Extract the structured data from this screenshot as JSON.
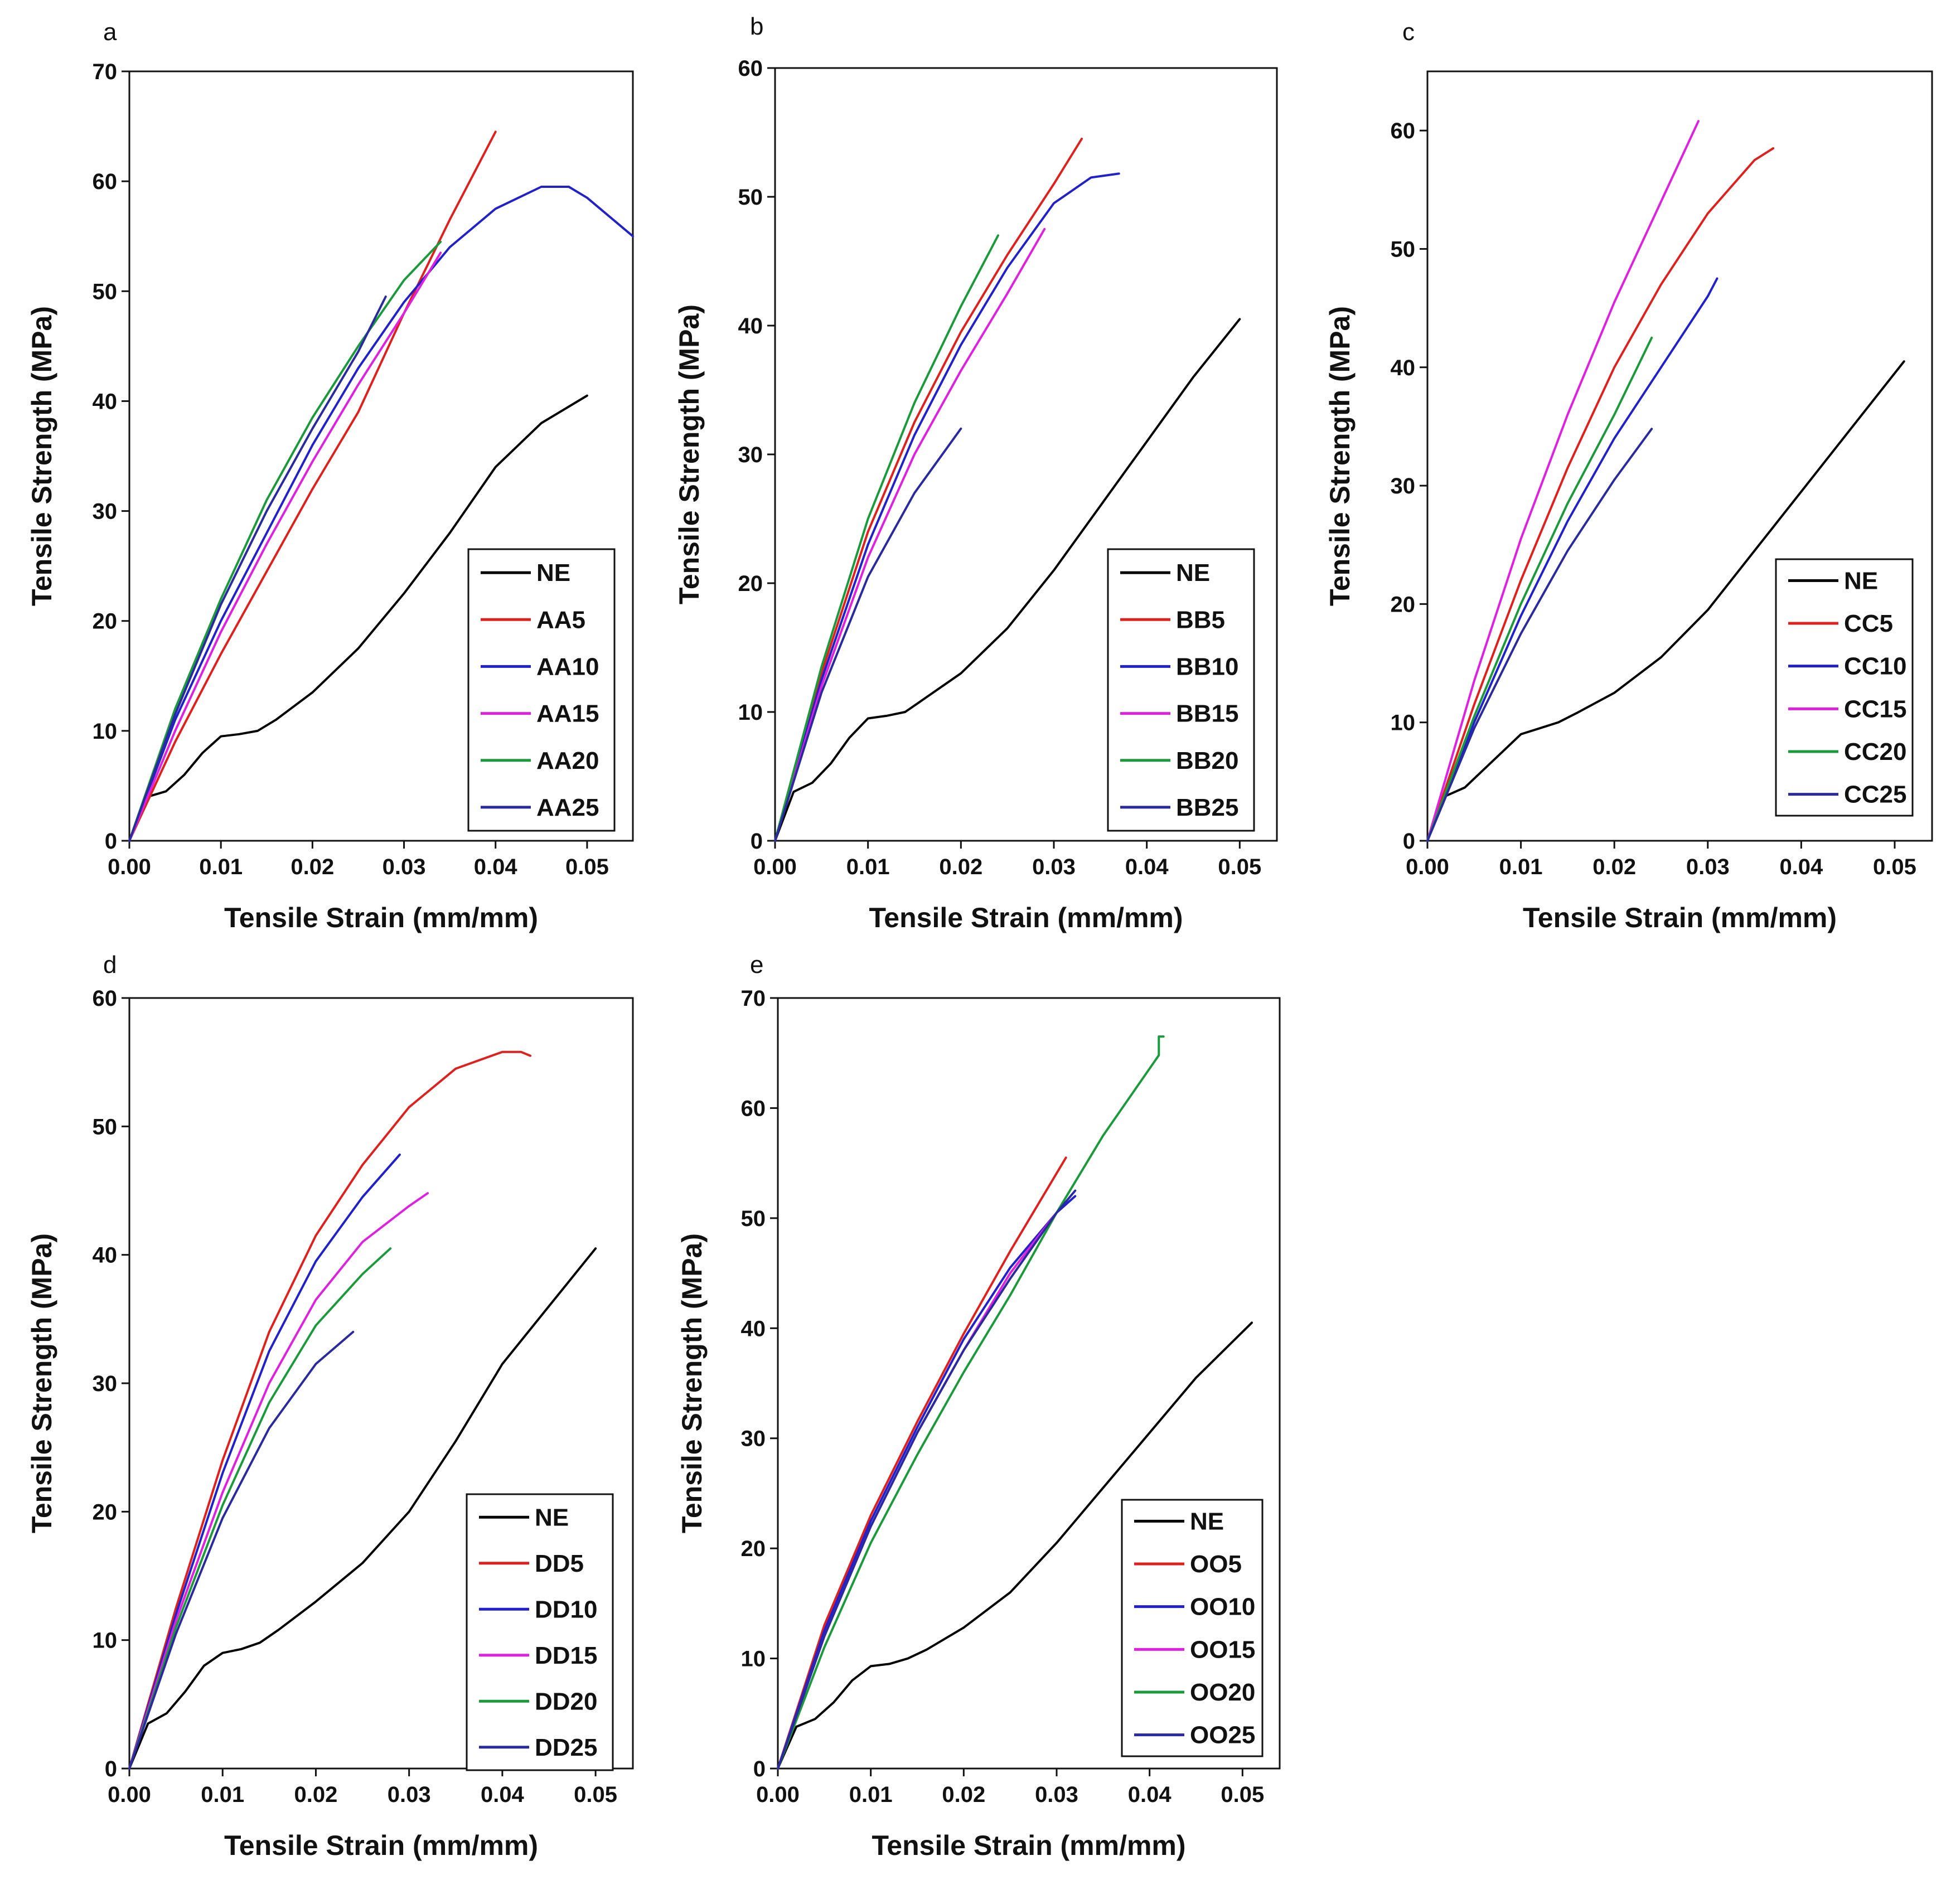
{
  "chart_data": [
    {
      "panel": "a",
      "type": "line",
      "xlabel": "Tensile  Strain (mm/mm)",
      "ylabel": "Tensile Strength (MPa)",
      "xlim": [
        0,
        0.055
      ],
      "ylim": [
        0,
        70
      ],
      "xticks": [
        0.0,
        0.01,
        0.02,
        0.03,
        0.04,
        0.05
      ],
      "yticks": [
        0,
        10,
        20,
        30,
        40,
        50,
        60,
        70
      ],
      "xtick_labels": [
        "0.00",
        "0.01",
        "0.02",
        "0.03",
        "0.04",
        "0.05"
      ],
      "ytick_labels": [
        "0",
        "10",
        "20",
        "30",
        "40",
        "50",
        "60",
        "70"
      ],
      "legend": "bottom-right",
      "series": [
        {
          "name": "NE",
          "color": "#000000",
          "x": [
            0,
            0.002,
            0.004,
            0.006,
            0.008,
            0.01,
            0.012,
            0.014,
            0.016,
            0.02,
            0.025,
            0.03,
            0.035,
            0.04,
            0.045,
            0.05
          ],
          "y": [
            0,
            4,
            4.5,
            6,
            8,
            9.5,
            9.7,
            10,
            11,
            13.5,
            17.5,
            22.5,
            28,
            34,
            38,
            40.5
          ]
        },
        {
          "name": "AA5",
          "color": "#e0201c",
          "x": [
            0,
            0.005,
            0.01,
            0.015,
            0.02,
            0.025,
            0.03,
            0.035,
            0.04
          ],
          "y": [
            0,
            9,
            17,
            24.5,
            32,
            39,
            48,
            56.5,
            64.5
          ]
        },
        {
          "name": "AA10",
          "color": "#2020cc",
          "x": [
            0,
            0.005,
            0.01,
            0.015,
            0.02,
            0.025,
            0.03,
            0.035,
            0.04,
            0.045,
            0.048,
            0.05,
            0.055
          ],
          "y": [
            0,
            11,
            20,
            28,
            36,
            43,
            49,
            54,
            57.5,
            59.5,
            59.5,
            58.5,
            55
          ]
        },
        {
          "name": "AA15",
          "color": "#e020e0",
          "x": [
            0,
            0.005,
            0.01,
            0.015,
            0.02,
            0.025,
            0.03,
            0.034
          ],
          "y": [
            0,
            10,
            19,
            27,
            34.5,
            41.5,
            48,
            53.5
          ]
        },
        {
          "name": "AA20",
          "color": "#1a9a3a",
          "x": [
            0,
            0.005,
            0.01,
            0.015,
            0.02,
            0.025,
            0.03,
            0.034
          ],
          "y": [
            0,
            12,
            22,
            31,
            38.5,
            45,
            51,
            54.5
          ]
        },
        {
          "name": "AA25",
          "color": "#2a2aa0",
          "x": [
            0,
            0.005,
            0.01,
            0.015,
            0.02,
            0.025,
            0.028
          ],
          "y": [
            0,
            11.5,
            21.5,
            30,
            37.5,
            44.5,
            49.5
          ]
        }
      ]
    },
    {
      "panel": "b",
      "type": "line",
      "xlabel": "Tensile Strain (mm/mm)",
      "ylabel": "Tensile Strength (MPa)",
      "xlim": [
        0,
        0.054
      ],
      "ylim": [
        0,
        60
      ],
      "xticks": [
        0.0,
        0.01,
        0.02,
        0.03,
        0.04,
        0.05
      ],
      "yticks": [
        0,
        10,
        20,
        30,
        40,
        50,
        60
      ],
      "xtick_labels": [
        "0.00",
        "0.01",
        "0.02",
        "0.03",
        "0.04",
        "0.05"
      ],
      "ytick_labels": [
        "0",
        "10",
        "20",
        "30",
        "40",
        "50",
        "60"
      ],
      "legend": "bottom-right",
      "series": [
        {
          "name": "NE",
          "color": "#000000",
          "x": [
            0,
            0.002,
            0.004,
            0.006,
            0.008,
            0.01,
            0.012,
            0.014,
            0.016,
            0.02,
            0.025,
            0.03,
            0.035,
            0.04,
            0.045,
            0.05
          ],
          "y": [
            0,
            3.8,
            4.5,
            6,
            8,
            9.5,
            9.7,
            10,
            11,
            13,
            16.5,
            21,
            26,
            31,
            36,
            40.5
          ]
        },
        {
          "name": "BB5",
          "color": "#e0201c",
          "x": [
            0,
            0.005,
            0.01,
            0.015,
            0.02,
            0.025,
            0.03,
            0.033
          ],
          "y": [
            0,
            13,
            24,
            32.5,
            39.5,
            45.5,
            51,
            54.5
          ]
        },
        {
          "name": "BB10",
          "color": "#2020cc",
          "x": [
            0,
            0.005,
            0.01,
            0.015,
            0.02,
            0.025,
            0.03,
            0.034,
            0.037
          ],
          "y": [
            0,
            12.5,
            23,
            31.5,
            38.5,
            44.5,
            49.5,
            51.5,
            51.8
          ]
        },
        {
          "name": "BB15",
          "color": "#e020e0",
          "x": [
            0,
            0.005,
            0.01,
            0.015,
            0.02,
            0.025,
            0.029
          ],
          "y": [
            0,
            12,
            22,
            30,
            36.5,
            42.5,
            47.5
          ]
        },
        {
          "name": "BB20",
          "color": "#1a9a3a",
          "x": [
            0,
            0.005,
            0.01,
            0.015,
            0.02,
            0.024
          ],
          "y": [
            0,
            13.5,
            25,
            34,
            41.5,
            47
          ]
        },
        {
          "name": "BB25",
          "color": "#2a2aa0",
          "x": [
            0,
            0.005,
            0.01,
            0.015,
            0.02
          ],
          "y": [
            0,
            11.5,
            20.5,
            27,
            32
          ]
        }
      ]
    },
    {
      "panel": "c",
      "type": "line",
      "xlabel": "Tensile Strain (mm/mm)",
      "ylabel": "Tensile Strength (MPa)",
      "xlim": [
        0,
        0.054
      ],
      "ylim": [
        0,
        65
      ],
      "xticks": [
        0.0,
        0.01,
        0.02,
        0.03,
        0.04,
        0.05
      ],
      "yticks": [
        0,
        10,
        20,
        30,
        40,
        50,
        60
      ],
      "xtick_labels": [
        "0.00",
        "0.01",
        "0.02",
        "0.03",
        "0.04",
        "0.05"
      ],
      "ytick_labels": [
        "0",
        "10",
        "20",
        "30",
        "40",
        "50",
        "60"
      ],
      "legend": "bottom-right",
      "series": [
        {
          "name": "NE",
          "color": "#000000",
          "x": [
            0,
            0.002,
            0.004,
            0.006,
            0.008,
            0.01,
            0.012,
            0.014,
            0.016,
            0.02,
            0.025,
            0.03,
            0.035,
            0.04,
            0.045,
            0.051
          ],
          "y": [
            0,
            3.8,
            4.5,
            6,
            7.5,
            9,
            9.5,
            10,
            10.8,
            12.5,
            15.5,
            19.5,
            24.5,
            29.5,
            34.5,
            40.5
          ]
        },
        {
          "name": "CC5",
          "color": "#e0201c",
          "x": [
            0,
            0.005,
            0.01,
            0.015,
            0.02,
            0.025,
            0.03,
            0.035,
            0.037
          ],
          "y": [
            0,
            11.5,
            22,
            31.5,
            40,
            47,
            53,
            57.5,
            58.5
          ]
        },
        {
          "name": "CC10",
          "color": "#2020cc",
          "x": [
            0,
            0.005,
            0.01,
            0.015,
            0.02,
            0.025,
            0.03,
            0.031
          ],
          "y": [
            0,
            10,
            19,
            27,
            34,
            40,
            46,
            47.5
          ]
        },
        {
          "name": "CC15",
          "color": "#e020e0",
          "x": [
            0,
            0.005,
            0.01,
            0.015,
            0.02,
            0.025,
            0.029
          ],
          "y": [
            0,
            13.5,
            25.5,
            36,
            45.5,
            54,
            60.8
          ]
        },
        {
          "name": "CC20",
          "color": "#1a9a3a",
          "x": [
            0,
            0.005,
            0.01,
            0.015,
            0.02,
            0.024
          ],
          "y": [
            0,
            10.5,
            20,
            28.5,
            36,
            42.5
          ]
        },
        {
          "name": "CC25",
          "color": "#2a2aa0",
          "x": [
            0,
            0.005,
            0.01,
            0.015,
            0.02,
            0.024
          ],
          "y": [
            0,
            9.5,
            17.5,
            24.5,
            30.5,
            34.8
          ]
        }
      ]
    },
    {
      "panel": "d",
      "type": "line",
      "xlabel": "Tensile Strain (mm/mm)",
      "ylabel": "Tensile Strength (MPa)",
      "xlim": [
        0,
        0.054
      ],
      "ylim": [
        0,
        60
      ],
      "xticks": [
        0.0,
        0.01,
        0.02,
        0.03,
        0.04,
        0.05
      ],
      "yticks": [
        0,
        10,
        20,
        30,
        40,
        50,
        60
      ],
      "xtick_labels": [
        "0.00",
        "0.01",
        "0.02",
        "0.03",
        "0.04",
        "0.05"
      ],
      "ytick_labels": [
        "0",
        "10",
        "20",
        "30",
        "40",
        "50",
        "60"
      ],
      "legend": "bottom-right",
      "series": [
        {
          "name": "NE",
          "color": "#000000",
          "x": [
            0,
            0.002,
            0.004,
            0.006,
            0.008,
            0.01,
            0.012,
            0.014,
            0.016,
            0.02,
            0.025,
            0.03,
            0.035,
            0.04,
            0.045,
            0.05
          ],
          "y": [
            0,
            3.5,
            4.3,
            6,
            8,
            9,
            9.3,
            9.8,
            10.8,
            13,
            16,
            20,
            25.5,
            31.5,
            36,
            40.5
          ]
        },
        {
          "name": "DD5",
          "color": "#e0201c",
          "x": [
            0,
            0.005,
            0.01,
            0.015,
            0.02,
            0.025,
            0.03,
            0.035,
            0.04,
            0.042,
            0.043
          ],
          "y": [
            0,
            12.5,
            24,
            34,
            41.5,
            47,
            51.5,
            54.5,
            55.8,
            55.8,
            55.5
          ]
        },
        {
          "name": "DD10",
          "color": "#2020cc",
          "x": [
            0,
            0.005,
            0.01,
            0.015,
            0.02,
            0.025,
            0.029
          ],
          "y": [
            0,
            12,
            23,
            32.5,
            39.5,
            44.5,
            47.8
          ]
        },
        {
          "name": "DD15",
          "color": "#e020e0",
          "x": [
            0,
            0.005,
            0.01,
            0.015,
            0.02,
            0.025,
            0.03,
            0.032
          ],
          "y": [
            0,
            11.5,
            21.5,
            30,
            36.5,
            41,
            43.8,
            44.8
          ]
        },
        {
          "name": "DD20",
          "color": "#1a9a3a",
          "x": [
            0,
            0.005,
            0.01,
            0.015,
            0.02,
            0.025,
            0.028
          ],
          "y": [
            0,
            11,
            20.5,
            28.5,
            34.5,
            38.5,
            40.5
          ]
        },
        {
          "name": "DD25",
          "color": "#2a2aa0",
          "x": [
            0,
            0.005,
            0.01,
            0.015,
            0.02,
            0.024
          ],
          "y": [
            0,
            10.5,
            19.5,
            26.5,
            31.5,
            34
          ]
        }
      ]
    },
    {
      "panel": "e",
      "type": "line",
      "xlabel": "Tensile Strain (mm/mm)",
      "ylabel": "Tensile Strength (MPa)",
      "xlim": [
        0,
        0.054
      ],
      "ylim": [
        0,
        70
      ],
      "xticks": [
        0.0,
        0.01,
        0.02,
        0.03,
        0.04,
        0.05
      ],
      "yticks": [
        0,
        10,
        20,
        30,
        40,
        50,
        60,
        70
      ],
      "xtick_labels": [
        "0.00",
        "0.01",
        "0.02",
        "0.03",
        "0.04",
        "0.05"
      ],
      "ytick_labels": [
        "0",
        "10",
        "20",
        "30",
        "40",
        "50",
        "60",
        "70"
      ],
      "legend": "bottom-right",
      "series": [
        {
          "name": "NE",
          "color": "#000000",
          "x": [
            0,
            0.002,
            0.004,
            0.006,
            0.008,
            0.01,
            0.012,
            0.014,
            0.016,
            0.02,
            0.025,
            0.03,
            0.035,
            0.04,
            0.045,
            0.051
          ],
          "y": [
            0,
            3.8,
            4.5,
            6,
            8,
            9.3,
            9.5,
            10,
            10.8,
            12.8,
            16,
            20.5,
            25.5,
            30.5,
            35.5,
            40.5
          ]
        },
        {
          "name": "OO5",
          "color": "#e0201c",
          "x": [
            0,
            0.005,
            0.01,
            0.015,
            0.02,
            0.025,
            0.031
          ],
          "y": [
            0,
            13,
            23,
            31.5,
            39.5,
            47,
            55.5
          ]
        },
        {
          "name": "OO10",
          "color": "#2020cc",
          "x": [
            0,
            0.005,
            0.01,
            0.015,
            0.02,
            0.025,
            0.03,
            0.032
          ],
          "y": [
            0,
            12.5,
            22.5,
            31,
            39,
            45.5,
            50.5,
            52
          ]
        },
        {
          "name": "OO15",
          "color": "#e020e0",
          "x": [
            0,
            0.005,
            0.01,
            0.015,
            0.02,
            0.025,
            0.03
          ],
          "y": [
            0,
            12,
            22,
            30.5,
            38,
            45,
            50.5
          ]
        },
        {
          "name": "OO20",
          "color": "#1a9a3a",
          "x": [
            0,
            0.005,
            0.01,
            0.015,
            0.02,
            0.025,
            0.03,
            0.035,
            0.041,
            0.041,
            0.0415
          ],
          "y": [
            0,
            11,
            20.5,
            28.5,
            36,
            43,
            50.5,
            57.5,
            64.8,
            66.5,
            66.5
          ]
        },
        {
          "name": "OO25",
          "color": "#2a2aa0",
          "x": [
            0,
            0.005,
            0.01,
            0.015,
            0.02,
            0.025,
            0.03,
            0.032
          ],
          "y": [
            0,
            12,
            22,
            30.5,
            38,
            44.5,
            50.5,
            52.5
          ]
        }
      ]
    }
  ]
}
